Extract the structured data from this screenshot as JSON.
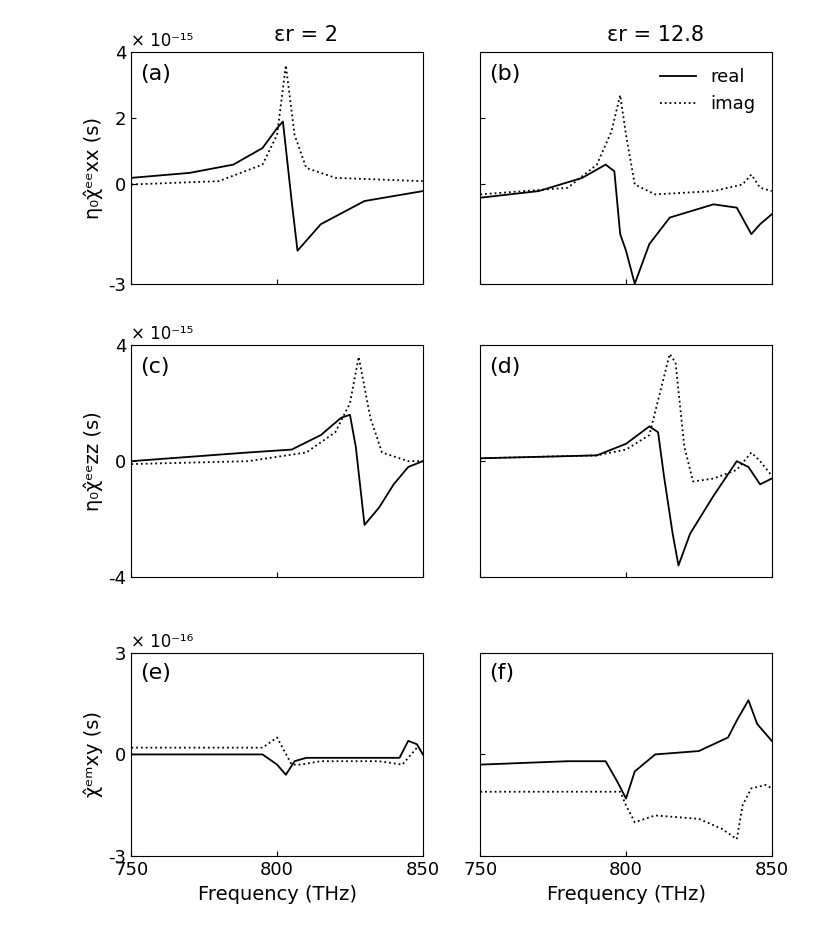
{
  "chart_data": [
    {
      "type": "line",
      "title": "(a)",
      "subtitle": "εr = 2",
      "y_label": "η₀χ̂ᵉᵉxx (s)",
      "annotations": [
        "× 10⁻¹⁵"
      ],
      "xlim": [
        750,
        850
      ],
      "xticks": [
        750,
        800,
        850
      ],
      "ylim": [
        -3,
        4
      ],
      "yticks": [
        -3,
        0,
        2,
        4
      ],
      "tick_labels": "y",
      "series": [
        {
          "name": "real",
          "color": "#000000",
          "line_style": "solid",
          "x": [
            750,
            770,
            785,
            795,
            800,
            802,
            805,
            807,
            815,
            830,
            850
          ],
          "values": [
            0.2,
            0.35,
            0.6,
            1.1,
            1.7,
            1.9,
            -0.5,
            -2.0,
            -1.2,
            -0.5,
            -0.2
          ]
        },
        {
          "name": "imag",
          "color": "#000000",
          "line_style": "dotted",
          "x": [
            750,
            780,
            795,
            800,
            803,
            806,
            810,
            820,
            850
          ],
          "values": [
            0.0,
            0.1,
            0.6,
            1.5,
            3.6,
            1.5,
            0.5,
            0.2,
            0.1
          ]
        }
      ]
    },
    {
      "type": "line",
      "title": "(b)",
      "subtitle": "εr = 12.8",
      "legend": "upper right",
      "xlim": [
        750,
        850
      ],
      "xticks": [
        750,
        800,
        850
      ],
      "ylim": [
        -3,
        4
      ],
      "yticks": [
        -3,
        0,
        2,
        4
      ],
      "tick_labels": false,
      "series": [
        {
          "name": "real",
          "color": "#000000",
          "line_style": "solid",
          "x": [
            750,
            770,
            785,
            793,
            796,
            798,
            800,
            803,
            808,
            815,
            830,
            838,
            843,
            846,
            850
          ],
          "values": [
            -0.4,
            -0.2,
            0.2,
            0.6,
            0.4,
            -1.5,
            -2.0,
            -3.0,
            -1.8,
            -1.0,
            -0.6,
            -0.7,
            -1.5,
            -1.2,
            -0.9
          ]
        },
        {
          "name": "imag",
          "color": "#000000",
          "line_style": "dotted",
          "x": [
            750,
            780,
            790,
            795,
            798,
            800,
            803,
            810,
            830,
            840,
            843,
            846,
            850
          ],
          "values": [
            -0.3,
            -0.1,
            0.6,
            1.6,
            2.7,
            1.5,
            0.0,
            -0.3,
            -0.2,
            0.0,
            0.3,
            -0.1,
            -0.2
          ]
        }
      ]
    },
    {
      "type": "line",
      "title": "(c)",
      "y_label": "η₀χ̂ᵉᵉzz (s)",
      "annotations": [
        "× 10⁻¹⁵"
      ],
      "xlim": [
        750,
        850
      ],
      "xticks": [
        750,
        800,
        850
      ],
      "ylim": [
        -4,
        4
      ],
      "yticks": [
        -4,
        0,
        4
      ],
      "tick_labels": "y",
      "series": [
        {
          "name": "real",
          "color": "#000000",
          "line_style": "solid",
          "x": [
            750,
            790,
            805,
            815,
            822,
            825,
            827,
            830,
            835,
            840,
            845,
            850
          ],
          "values": [
            0.0,
            0.3,
            0.4,
            0.9,
            1.5,
            1.6,
            0.5,
            -2.2,
            -1.6,
            -0.8,
            -0.2,
            0.0
          ]
        },
        {
          "name": "imag",
          "color": "#000000",
          "line_style": "dotted",
          "x": [
            750,
            790,
            810,
            820,
            825,
            828,
            832,
            836,
            845,
            850
          ],
          "values": [
            -0.1,
            0.0,
            0.3,
            1.0,
            2.0,
            3.6,
            1.5,
            0.3,
            0.0,
            0.0
          ]
        }
      ]
    },
    {
      "type": "line",
      "title": "(d)",
      "xlim": [
        750,
        850
      ],
      "xticks": [
        750,
        800,
        850
      ],
      "ylim": [
        -4,
        4
      ],
      "yticks": [
        -4,
        0,
        4
      ],
      "tick_labels": false,
      "series": [
        {
          "name": "real",
          "color": "#000000",
          "line_style": "solid",
          "x": [
            750,
            790,
            800,
            808,
            811,
            813,
            816,
            818,
            822,
            830,
            838,
            842,
            846,
            850
          ],
          "values": [
            0.1,
            0.2,
            0.6,
            1.2,
            1.0,
            -0.5,
            -2.5,
            -3.6,
            -2.5,
            -1.2,
            0.0,
            -0.2,
            -0.8,
            -0.6
          ]
        },
        {
          "name": "imag",
          "color": "#000000",
          "line_style": "dotted",
          "x": [
            750,
            790,
            800,
            808,
            812,
            815,
            817,
            820,
            823,
            830,
            838,
            843,
            846,
            850
          ],
          "values": [
            0.1,
            0.2,
            0.4,
            0.9,
            2.5,
            3.7,
            3.4,
            0.5,
            -0.7,
            -0.6,
            -0.3,
            0.3,
            0.0,
            -0.5
          ]
        }
      ]
    },
    {
      "type": "line",
      "title": "(e)",
      "y_label": "χ̂ᵉᵐxy (s)",
      "x_label": "Frequency (THz)",
      "annotations": [
        "× 10⁻¹⁶"
      ],
      "xlim": [
        750,
        850
      ],
      "xticks": [
        750,
        800,
        850
      ],
      "ylim": [
        -3,
        3
      ],
      "yticks": [
        -3,
        0,
        3
      ],
      "tick_labels": true,
      "series": [
        {
          "name": "real",
          "color": "#000000",
          "line_style": "solid",
          "x": [
            750,
            795,
            800,
            803,
            806,
            810,
            835,
            842,
            845,
            848,
            850
          ],
          "values": [
            0.0,
            0.0,
            -0.3,
            -0.6,
            -0.2,
            -0.1,
            -0.1,
            -0.1,
            0.4,
            0.3,
            0.0
          ]
        },
        {
          "name": "imag",
          "color": "#000000",
          "line_style": "dotted",
          "x": [
            750,
            795,
            800,
            805,
            808,
            815,
            835,
            843,
            846,
            848,
            850
          ],
          "values": [
            0.2,
            0.2,
            0.5,
            -0.3,
            -0.3,
            -0.2,
            -0.2,
            -0.3,
            0.0,
            0.2,
            0.1
          ]
        }
      ]
    },
    {
      "type": "line",
      "title": "(f)",
      "x_label": "Frequency (THz)",
      "xlim": [
        750,
        850
      ],
      "xticks": [
        750,
        800,
        850
      ],
      "ylim": [
        -3,
        3
      ],
      "yticks": [
        -3,
        0,
        3
      ],
      "tick_labels": "x",
      "series": [
        {
          "name": "real",
          "color": "#000000",
          "line_style": "solid",
          "x": [
            750,
            780,
            793,
            797,
            800,
            803,
            810,
            825,
            835,
            838,
            842,
            845,
            850
          ],
          "values": [
            -0.3,
            -0.2,
            -0.2,
            -0.8,
            -1.3,
            -0.5,
            0.0,
            0.1,
            0.5,
            1.0,
            1.6,
            0.9,
            0.4
          ]
        },
        {
          "name": "imag",
          "color": "#000000",
          "line_style": "dotted",
          "x": [
            750,
            790,
            798,
            800,
            803,
            810,
            825,
            833,
            838,
            840,
            843,
            848,
            850
          ],
          "values": [
            -1.1,
            -1.1,
            -1.1,
            -1.5,
            -2.0,
            -1.8,
            -1.9,
            -2.2,
            -2.5,
            -1.5,
            -1.0,
            -0.9,
            -1.0
          ]
        }
      ]
    }
  ]
}
